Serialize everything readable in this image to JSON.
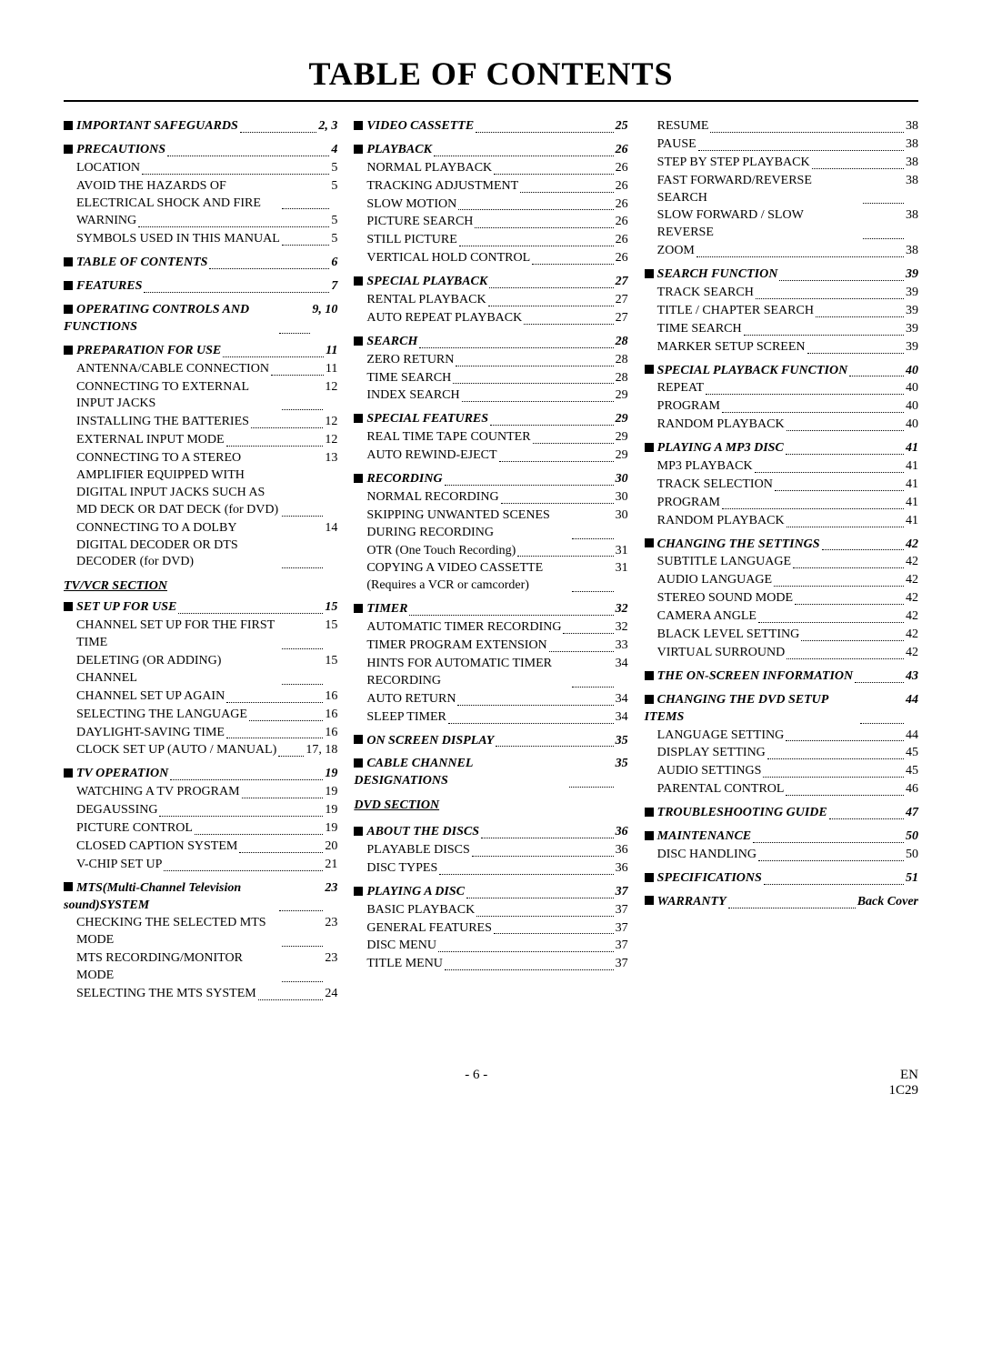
{
  "title": "TABLE OF CONTENTS",
  "footer": {
    "page": "- 6 -",
    "lang": "EN",
    "code": "1C29"
  },
  "col1": [
    {
      "t": "h",
      "label": "IMPORTANT SAFEGUARDS",
      "pg": "2, 3"
    },
    {
      "t": "sp"
    },
    {
      "t": "h",
      "label": "PRECAUTIONS",
      "pg": "4"
    },
    {
      "t": "s",
      "label": "LOCATION",
      "pg": "5"
    },
    {
      "t": "s",
      "label": "AVOID THE HAZARDS OF ELECTRICAL SHOCK AND FIRE",
      "pg": "5",
      "wrap": true
    },
    {
      "t": "s",
      "label": "WARNING",
      "pg": "5"
    },
    {
      "t": "s",
      "label": "SYMBOLS USED IN THIS MANUAL",
      "pg": "5",
      "wrap": true
    },
    {
      "t": "sp"
    },
    {
      "t": "h",
      "label": "TABLE OF CONTENTS",
      "pg": "6"
    },
    {
      "t": "sp"
    },
    {
      "t": "h",
      "label": "FEATURES",
      "pg": "7"
    },
    {
      "t": "sp"
    },
    {
      "t": "h",
      "label": "OPERATING CONTROLS AND FUNCTIONS",
      "pg": "9, 10",
      "wrap": true
    },
    {
      "t": "sp"
    },
    {
      "t": "h",
      "label": "PREPARATION FOR USE",
      "pg": "11"
    },
    {
      "t": "s",
      "label": "ANTENNA/CABLE CONNECTION",
      "pg": "11",
      "wrap": true
    },
    {
      "t": "s",
      "label": "CONNECTING TO EXTERNAL INPUT JACKS",
      "pg": "12",
      "wrap": true
    },
    {
      "t": "s",
      "label": "INSTALLING THE BATTERIES",
      "pg": "12"
    },
    {
      "t": "s",
      "label": "EXTERNAL INPUT MODE",
      "pg": "12"
    },
    {
      "t": "s",
      "label": "CONNECTING TO A STEREO AMPLIFIER EQUIPPED WITH DIGITAL INPUT JACKS SUCH AS MD DECK OR DAT DECK (for DVD)",
      "pg": "13",
      "wrap": true
    },
    {
      "t": "s",
      "label": "CONNECTING TO A DOLBY DIGITAL DECODER OR DTS DECODER (for DVD)",
      "pg": "14",
      "wrap": true
    },
    {
      "t": "u",
      "label": "TV/VCR SECTION"
    },
    {
      "t": "h",
      "label": "SET UP FOR USE",
      "pg": "15"
    },
    {
      "t": "s",
      "label": "CHANNEL SET UP FOR THE FIRST TIME",
      "pg": "15",
      "wrap": true
    },
    {
      "t": "s",
      "label": "DELETING (OR ADDING) CHANNEL",
      "pg": "15",
      "wrap": true
    },
    {
      "t": "s",
      "label": "CHANNEL SET UP AGAIN",
      "pg": "16"
    },
    {
      "t": "s",
      "label": "SELECTING THE LANGUAGE",
      "pg": "16"
    },
    {
      "t": "s",
      "label": "DAYLIGHT-SAVING TIME",
      "pg": "16"
    },
    {
      "t": "s",
      "label": "CLOCK SET UP (AUTO / MANUAL)",
      "pg": "17, 18",
      "wrap": true
    },
    {
      "t": "sp"
    },
    {
      "t": "h",
      "label": "TV OPERATION",
      "pg": "19"
    },
    {
      "t": "s",
      "label": "WATCHING A TV PROGRAM",
      "pg": "19"
    },
    {
      "t": "s",
      "label": "DEGAUSSING",
      "pg": "19"
    },
    {
      "t": "s",
      "label": "PICTURE CONTROL",
      "pg": "19"
    },
    {
      "t": "s",
      "label": "CLOSED CAPTION SYSTEM",
      "pg": "20"
    },
    {
      "t": "s",
      "label": "V-CHIP SET UP",
      "pg": "21"
    },
    {
      "t": "sp"
    },
    {
      "t": "h",
      "label": "MTS(Multi-Channel Television sound)SYSTEM",
      "pg": "23",
      "wrap": true
    },
    {
      "t": "s",
      "label": "CHECKING THE SELECTED MTS MODE",
      "pg": "23",
      "wrap": true
    },
    {
      "t": "s",
      "label": "MTS RECORDING/MONITOR MODE",
      "pg": "23",
      "wrap": true
    },
    {
      "t": "s",
      "label": "SELECTING THE MTS SYSTEM",
      "pg": "24"
    }
  ],
  "col2": [
    {
      "t": "h",
      "label": "VIDEO CASSETTE",
      "pg": "25"
    },
    {
      "t": "sp"
    },
    {
      "t": "h",
      "label": "PLAYBACK",
      "pg": "26"
    },
    {
      "t": "s",
      "label": "NORMAL PLAYBACK",
      "pg": "26"
    },
    {
      "t": "s",
      "label": "TRACKING ADJUSTMENT",
      "pg": "26"
    },
    {
      "t": "s",
      "label": "SLOW MOTION",
      "pg": "26"
    },
    {
      "t": "s",
      "label": "PICTURE SEARCH",
      "pg": "26"
    },
    {
      "t": "s",
      "label": "STILL PICTURE",
      "pg": "26"
    },
    {
      "t": "s",
      "label": "VERTICAL HOLD CONTROL",
      "pg": "26"
    },
    {
      "t": "sp"
    },
    {
      "t": "h",
      "label": "SPECIAL PLAYBACK",
      "pg": "27"
    },
    {
      "t": "s",
      "label": "RENTAL PLAYBACK",
      "pg": "27"
    },
    {
      "t": "s",
      "label": "AUTO REPEAT PLAYBACK",
      "pg": "27"
    },
    {
      "t": "sp"
    },
    {
      "t": "h",
      "label": "SEARCH",
      "pg": "28"
    },
    {
      "t": "s",
      "label": "ZERO RETURN",
      "pg": "28"
    },
    {
      "t": "s",
      "label": "TIME SEARCH",
      "pg": "28"
    },
    {
      "t": "s",
      "label": "INDEX SEARCH",
      "pg": "29"
    },
    {
      "t": "sp"
    },
    {
      "t": "h",
      "label": "SPECIAL FEATURES",
      "pg": "29"
    },
    {
      "t": "s",
      "label": "REAL TIME TAPE COUNTER",
      "pg": "29"
    },
    {
      "t": "s",
      "label": "AUTO REWIND-EJECT",
      "pg": "29"
    },
    {
      "t": "sp"
    },
    {
      "t": "h",
      "label": "RECORDING",
      "pg": "30"
    },
    {
      "t": "s",
      "label": "NORMAL RECORDING",
      "pg": "30"
    },
    {
      "t": "s",
      "label": "SKIPPING UNWANTED SCENES DURING RECORDING",
      "pg": "30",
      "wrap": true
    },
    {
      "t": "s",
      "label": "OTR (One Touch Recording)",
      "pg": "31"
    },
    {
      "t": "s",
      "label": "COPYING A VIDEO CASSETTE (Requires a VCR or camcorder)",
      "pg": "31",
      "wrap": true
    },
    {
      "t": "sp"
    },
    {
      "t": "h",
      "label": "TIMER",
      "pg": "32"
    },
    {
      "t": "s",
      "label": "AUTOMATIC TIMER RECORDING",
      "pg": "32",
      "wrap": true
    },
    {
      "t": "s",
      "label": "TIMER PROGRAM EXTENSION",
      "pg": "33"
    },
    {
      "t": "s",
      "label": "HINTS FOR AUTOMATIC TIMER RECORDING",
      "pg": "34",
      "wrap": true
    },
    {
      "t": "s",
      "label": "AUTO RETURN",
      "pg": "34"
    },
    {
      "t": "s",
      "label": "SLEEP TIMER",
      "pg": "34"
    },
    {
      "t": "sp"
    },
    {
      "t": "h",
      "label": "ON SCREEN DISPLAY",
      "pg": "35"
    },
    {
      "t": "sp"
    },
    {
      "t": "h",
      "label": "CABLE CHANNEL DESIGNATIONS",
      "pg": "35",
      "wrap": true
    },
    {
      "t": "u",
      "label": "DVD SECTION"
    },
    {
      "t": "sp"
    },
    {
      "t": "h",
      "label": "ABOUT THE DISCS",
      "pg": "36"
    },
    {
      "t": "s",
      "label": "PLAYABLE DISCS",
      "pg": "36"
    },
    {
      "t": "s",
      "label": "DISC TYPES",
      "pg": "36"
    },
    {
      "t": "sp"
    },
    {
      "t": "h",
      "label": "PLAYING A DISC",
      "pg": "37"
    },
    {
      "t": "s",
      "label": "BASIC PLAYBACK",
      "pg": "37"
    },
    {
      "t": "s",
      "label": "GENERAL FEATURES",
      "pg": "37"
    },
    {
      "t": "s",
      "label": "DISC MENU",
      "pg": "37"
    },
    {
      "t": "s",
      "label": "TITLE MENU",
      "pg": "37"
    }
  ],
  "col3": [
    {
      "t": "s",
      "label": "RESUME",
      "pg": "38"
    },
    {
      "t": "s",
      "label": "PAUSE",
      "pg": "38"
    },
    {
      "t": "s",
      "label": "STEP BY STEP PLAYBACK",
      "pg": "38"
    },
    {
      "t": "s",
      "label": "FAST FORWARD/REVERSE SEARCH",
      "pg": "38",
      "wrap": true
    },
    {
      "t": "s",
      "label": "SLOW FORWARD / SLOW REVERSE",
      "pg": "38",
      "wrap": true
    },
    {
      "t": "s",
      "label": "ZOOM",
      "pg": "38"
    },
    {
      "t": "sp"
    },
    {
      "t": "h",
      "label": "SEARCH FUNCTION",
      "pg": "39"
    },
    {
      "t": "s",
      "label": "TRACK SEARCH",
      "pg": "39"
    },
    {
      "t": "s",
      "label": "TITLE / CHAPTER SEARCH",
      "pg": "39"
    },
    {
      "t": "s",
      "label": "TIME SEARCH",
      "pg": "39"
    },
    {
      "t": "s",
      "label": "MARKER SETUP SCREEN",
      "pg": "39"
    },
    {
      "t": "sp"
    },
    {
      "t": "h",
      "label": "SPECIAL PLAYBACK FUNCTION",
      "pg": "40"
    },
    {
      "t": "s",
      "label": "REPEAT",
      "pg": "40"
    },
    {
      "t": "s",
      "label": "PROGRAM",
      "pg": "40"
    },
    {
      "t": "s",
      "label": "RANDOM PLAYBACK",
      "pg": "40"
    },
    {
      "t": "sp"
    },
    {
      "t": "h",
      "label": "PLAYING A MP3 DISC",
      "pg": "41"
    },
    {
      "t": "s",
      "label": "MP3 PLAYBACK",
      "pg": "41"
    },
    {
      "t": "s",
      "label": "TRACK SELECTION",
      "pg": "41"
    },
    {
      "t": "s",
      "label": "PROGRAM",
      "pg": "41"
    },
    {
      "t": "s",
      "label": "RANDOM PLAYBACK",
      "pg": "41"
    },
    {
      "t": "sp"
    },
    {
      "t": "h",
      "label": "CHANGING THE SETTINGS",
      "pg": "42"
    },
    {
      "t": "s",
      "label": "SUBTITLE LANGUAGE",
      "pg": "42"
    },
    {
      "t": "s",
      "label": "AUDIO LANGUAGE",
      "pg": "42"
    },
    {
      "t": "s",
      "label": "STEREO SOUND MODE",
      "pg": "42"
    },
    {
      "t": "s",
      "label": "CAMERA ANGLE",
      "pg": "42"
    },
    {
      "t": "s",
      "label": "BLACK LEVEL SETTING",
      "pg": "42"
    },
    {
      "t": "s",
      "label": "VIRTUAL SURROUND",
      "pg": "42"
    },
    {
      "t": "sp"
    },
    {
      "t": "h",
      "label": "THE ON-SCREEN INFORMATION",
      "pg": "43"
    },
    {
      "t": "sp"
    },
    {
      "t": "h",
      "label": "CHANGING THE DVD SETUP ITEMS",
      "pg": "44",
      "wrap": true
    },
    {
      "t": "s",
      "label": "LANGUAGE SETTING",
      "pg": "44"
    },
    {
      "t": "s",
      "label": "DISPLAY SETTING",
      "pg": "45"
    },
    {
      "t": "s",
      "label": "AUDIO SETTINGS",
      "pg": "45"
    },
    {
      "t": "s",
      "label": "PARENTAL CONTROL",
      "pg": "46"
    },
    {
      "t": "sp"
    },
    {
      "t": "h",
      "label": "TROUBLESHOOTING GUIDE",
      "pg": "47"
    },
    {
      "t": "sp"
    },
    {
      "t": "h",
      "label": "MAINTENANCE",
      "pg": "50"
    },
    {
      "t": "s",
      "label": "DISC HANDLING",
      "pg": "50"
    },
    {
      "t": "sp"
    },
    {
      "t": "h",
      "label": "SPECIFICATIONS",
      "pg": "51"
    },
    {
      "t": "sp"
    },
    {
      "t": "h",
      "label": "WARRANTY",
      "pg": "Back Cover"
    }
  ]
}
